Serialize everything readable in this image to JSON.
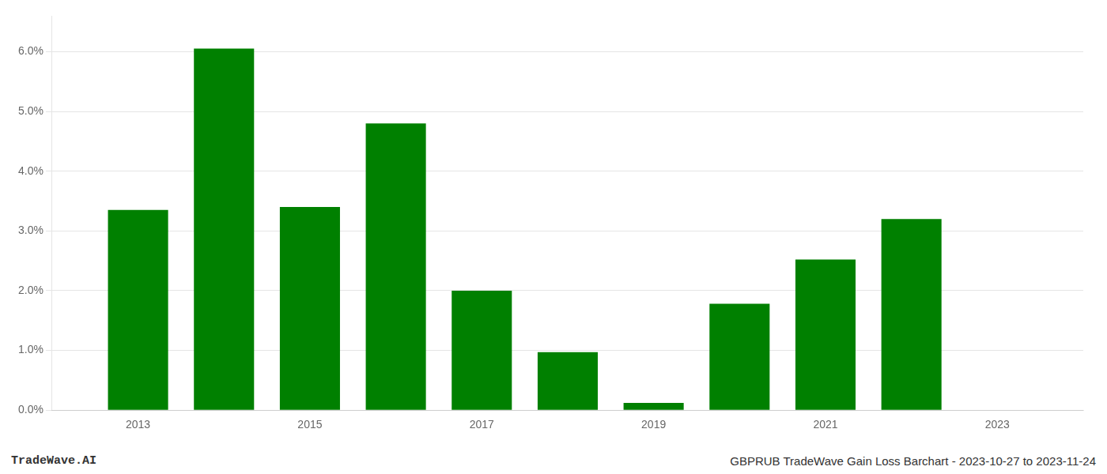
{
  "chart_data": {
    "type": "bar",
    "x": [
      2013,
      2014,
      2015,
      2016,
      2017,
      2018,
      2019,
      2020,
      2021,
      2022,
      2023
    ],
    "values": [
      3.35,
      6.05,
      3.4,
      4.8,
      2.0,
      0.97,
      0.12,
      1.78,
      2.52,
      3.2,
      0.0
    ],
    "color": "#008000",
    "xlim": [
      2012.0,
      2024.0
    ],
    "xticks": [
      2013,
      2015,
      2017,
      2019,
      2021,
      2023
    ],
    "ylim": [
      0.0,
      6.6
    ],
    "yticks": [
      {
        "value": 0.0,
        "label": "0.0%"
      },
      {
        "value": 1.0,
        "label": "1.0%"
      },
      {
        "value": 2.0,
        "label": "2.0%"
      },
      {
        "value": 3.0,
        "label": "3.0%"
      },
      {
        "value": 4.0,
        "label": "4.0%"
      },
      {
        "value": 5.0,
        "label": "5.0%"
      },
      {
        "value": 6.0,
        "label": "6.0%"
      }
    ],
    "grid": "y",
    "annotations": [
      "TradeWave.AI",
      "GBPRUB TradeWave Gain Loss Barchart - 2023-10-27 to 2023-11-24"
    ]
  }
}
